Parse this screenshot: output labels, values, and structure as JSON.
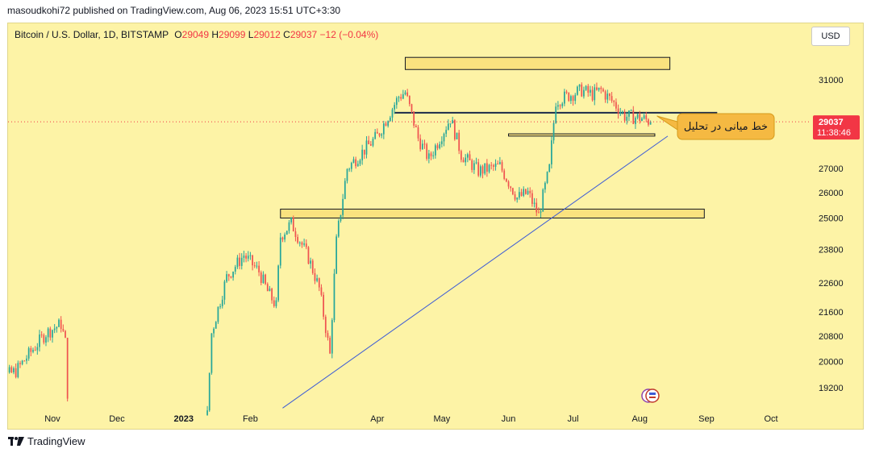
{
  "header": {
    "publisher": "masoudkohi72 published on TradingView.com, Aug 06, 2023 15:51 UTC+3:30"
  },
  "symbol": {
    "title": "Bitcoin / U.S. Dollar, 1D, BITSTAMP",
    "open_label": "O",
    "open": "29049",
    "high_label": "H",
    "high": "29099",
    "low_label": "L",
    "low": "29012",
    "close_label": "C",
    "close": "29037",
    "change": "−12 (−0.04%)"
  },
  "currency_button": "USD",
  "price_tag": {
    "price": "29037",
    "countdown": "11:38:46"
  },
  "annotation_text": "خط میانی در تحلیل",
  "footer": {
    "brand": "TradingView"
  },
  "colors": {
    "background": "#fdf3a6",
    "up": "#26a69a",
    "down": "#ef5350",
    "trendline": "#3c5bd6",
    "level_line": "#1b2a4a",
    "zone_fill": "#f7d35e",
    "annotation_fill": "#f5b942",
    "price_tag": "#f23645"
  },
  "chart_data": {
    "type": "candlestick",
    "y_ticks": [
      31000,
      29037,
      27000,
      26000,
      25000,
      23800,
      22600,
      21600,
      20800,
      20000,
      19200
    ],
    "y_tick_labels": [
      "31000",
      "27000",
      "26000",
      "25000",
      "23800",
      "22600",
      "21600",
      "20800",
      "20000",
      "19200"
    ],
    "x_ticks": [
      {
        "label": "Nov",
        "date": "2022-11-01"
      },
      {
        "label": "Dec",
        "date": "2022-12-01"
      },
      {
        "label": "2023",
        "date": "2023-01-01"
      },
      {
        "label": "Feb",
        "date": "2023-02-01"
      },
      {
        "label": "Apr",
        "date": "2023-04-01"
      },
      {
        "label": "May",
        "date": "2023-05-01"
      },
      {
        "label": "Jun",
        "date": "2023-06-01"
      },
      {
        "label": "Jul",
        "date": "2023-07-01"
      },
      {
        "label": "Aug",
        "date": "2023-08-01"
      },
      {
        "label": "Sep",
        "date": "2023-09-01"
      },
      {
        "label": "Oct",
        "date": "2023-10-01"
      }
    ],
    "anchors": [
      [
        "2022-10-01",
        19300
      ],
      [
        "2022-10-15",
        19700
      ],
      [
        "2022-10-29",
        20900
      ],
      [
        "2022-11-05",
        21200
      ],
      [
        "2022-11-07",
        20600
      ],
      [
        "2022-11-09",
        17500
      ],
      [
        "2023-01-12",
        18400
      ],
      [
        "2023-01-14",
        20900
      ],
      [
        "2023-01-21",
        22800
      ],
      [
        "2023-01-29",
        23600
      ],
      [
        "2023-02-05",
        23000
      ],
      [
        "2023-02-09",
        22300
      ],
      [
        "2023-02-13",
        21800
      ],
      [
        "2023-02-15",
        24300
      ],
      [
        "2023-02-20",
        24800
      ],
      [
        "2023-02-28",
        23500
      ],
      [
        "2023-03-05",
        22400
      ],
      [
        "2023-03-10",
        20200
      ],
      [
        "2023-03-13",
        24100
      ],
      [
        "2023-03-18",
        27000
      ],
      [
        "2023-03-25",
        27700
      ],
      [
        "2023-04-01",
        28400
      ],
      [
        "2023-04-11",
        30200
      ],
      [
        "2023-04-14",
        30400
      ],
      [
        "2023-04-20",
        28300
      ],
      [
        "2023-04-25",
        27400
      ],
      [
        "2023-05-05",
        29200
      ],
      [
        "2023-05-10",
        27600
      ],
      [
        "2023-05-18",
        26900
      ],
      [
        "2023-05-28",
        27100
      ],
      [
        "2023-06-05",
        25800
      ],
      [
        "2023-06-10",
        26000
      ],
      [
        "2023-06-15",
        25100
      ],
      [
        "2023-06-20",
        27000
      ],
      [
        "2023-06-23",
        30000
      ],
      [
        "2023-07-05",
        30500
      ],
      [
        "2023-07-10",
        30300
      ],
      [
        "2023-07-14",
        30500
      ],
      [
        "2023-07-20",
        29900
      ],
      [
        "2023-07-25",
        29300
      ],
      [
        "2023-08-02",
        29200
      ],
      [
        "2023-08-06",
        29037
      ]
    ],
    "horizontal_zones": [
      {
        "date_from": "2023-04-14",
        "date_to": "2023-08-15",
        "price_low": 31500,
        "price_high": 32100
      },
      {
        "date_from": "2023-02-15",
        "date_to": "2023-08-31",
        "price_low": 25000,
        "price_high": 25350
      },
      {
        "date_from": "2023-06-01",
        "date_to": "2023-08-08",
        "price_low": 28400,
        "price_high": 28500
      }
    ],
    "horizontal_lines": [
      {
        "date_from": "2023-04-09",
        "date_to": "2023-09-06",
        "price": 29450
      }
    ],
    "trendline": {
      "from": [
        "2023-02-16",
        18600
      ],
      "to": [
        "2023-08-14",
        28400
      ]
    }
  }
}
